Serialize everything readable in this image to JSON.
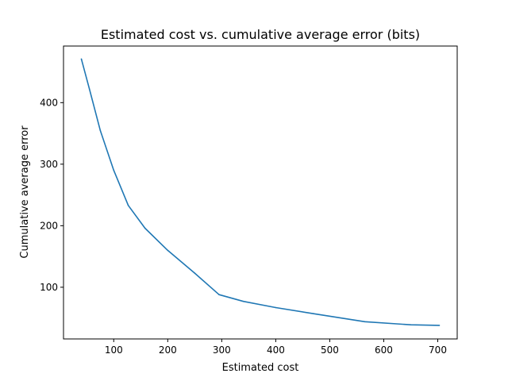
{
  "chart_data": {
    "type": "line",
    "title": "Estimated cost vs. cumulative average error (bits)",
    "xlabel": "Estimated cost",
    "ylabel": "Cumulative average error",
    "xlim": [
      7,
      736
    ],
    "ylim": [
      16,
      492
    ],
    "xticks": [
      100,
      200,
      300,
      400,
      500,
      600,
      700
    ],
    "yticks": [
      100,
      200,
      300,
      400
    ],
    "grid": false,
    "legend": "none",
    "series": [
      {
        "color": "#1f77b4",
        "x": [
          40,
          55,
          75,
          100,
          127,
          158,
          200,
          250,
          295,
          340,
          400,
          470,
          565,
          650,
          703
        ],
        "y": [
          471,
          422,
          355,
          290,
          233,
          196,
          160,
          123,
          88,
          77,
          67,
          57,
          44,
          39,
          38
        ]
      }
    ]
  }
}
